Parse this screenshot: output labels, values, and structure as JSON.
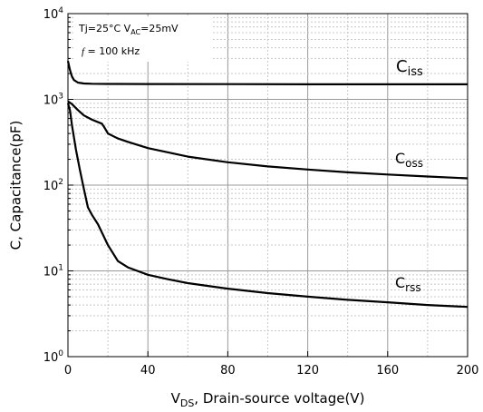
{
  "chart_data": {
    "type": "line",
    "title": "",
    "xlabel": {
      "main": "V",
      "sub": "DS",
      "rest": ", Drain-source voltage(V)"
    },
    "ylabel": "C, Capacitance(pF)",
    "xlim": [
      0,
      200
    ],
    "ylim": [
      1,
      10000
    ],
    "yscale": "log",
    "grid": true,
    "x_ticks": [
      "0",
      "40",
      "80",
      "120",
      "160",
      "200"
    ],
    "y_ticks": [
      {
        "base": "10",
        "exp": "0"
      },
      {
        "base": "10",
        "exp": "1"
      },
      {
        "base": "10",
        "exp": "2"
      },
      {
        "base": "10",
        "exp": "3"
      },
      {
        "base": "10",
        "exp": "4"
      }
    ],
    "annotation": {
      "line1_a": "Tj=25°C  V",
      "line1_sub": "AC",
      "line1_b": "=25mV",
      "line2_italic": "f",
      "line2_rest": " = 100 kHz"
    },
    "series": [
      {
        "name": "Ciss",
        "label_main": "C",
        "label_sub": "iss",
        "x": [
          0,
          1,
          2,
          3,
          5,
          8,
          12,
          20,
          40,
          80,
          120,
          160,
          200
        ],
        "y": [
          2800,
          2200,
          1850,
          1680,
          1570,
          1530,
          1520,
          1515,
          1510,
          1505,
          1500,
          1500,
          1500
        ]
      },
      {
        "name": "Coss",
        "label_main": "C",
        "label_sub": "oss",
        "x": [
          0,
          2,
          5,
          8,
          12,
          17,
          18,
          20,
          25,
          30,
          40,
          60,
          80,
          100,
          120,
          140,
          160,
          180,
          200
        ],
        "y": [
          950,
          880,
          750,
          650,
          580,
          520,
          480,
          400,
          350,
          320,
          270,
          215,
          185,
          165,
          152,
          141,
          133,
          126,
          120
        ]
      },
      {
        "name": "Crss",
        "label_main": "C",
        "label_sub": "rss",
        "x": [
          0,
          1,
          2,
          4,
          6,
          8,
          10,
          12,
          15,
          18,
          20,
          25,
          30,
          40,
          50,
          60,
          80,
          100,
          120,
          140,
          160,
          180,
          200
        ],
        "y": [
          900,
          750,
          500,
          260,
          150,
          90,
          55,
          45,
          35,
          25,
          20,
          13,
          11,
          9,
          8,
          7.2,
          6.2,
          5.5,
          5.0,
          4.6,
          4.3,
          4.0,
          3.8
        ]
      }
    ]
  }
}
